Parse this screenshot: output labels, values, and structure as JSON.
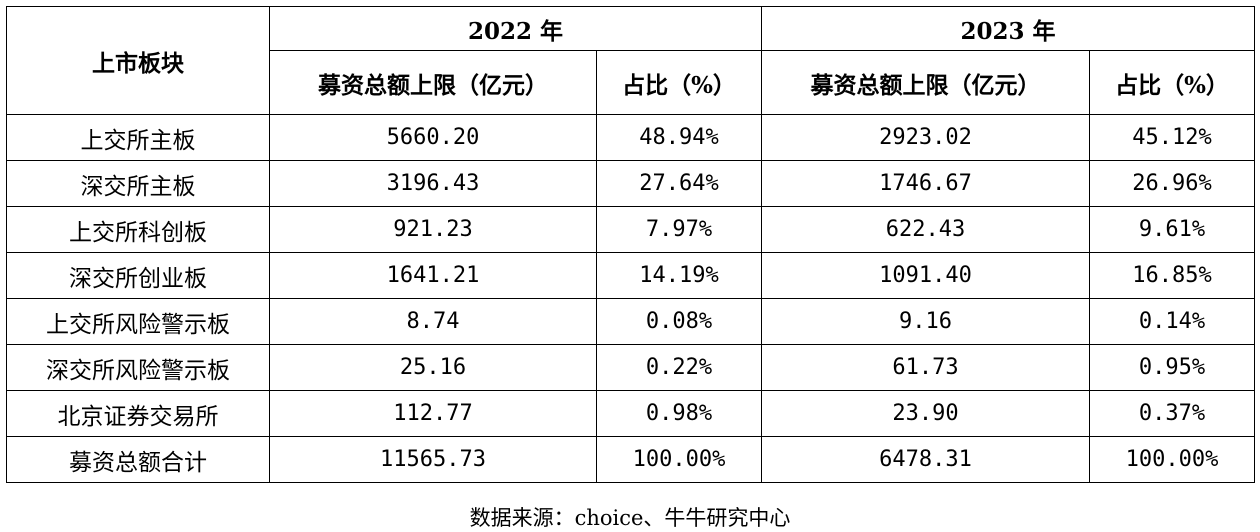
{
  "table": {
    "corner_header": "上市板块",
    "year_headers": [
      "2022 年",
      "2023 年"
    ],
    "sub_headers": [
      "募资总额上限（亿元）",
      "占比（%）",
      "募资总额上限（亿元）",
      "占比（%）"
    ],
    "rows": [
      {
        "board": "上交所主板",
        "amount_2022": "5660.20",
        "share_2022": "48.94%",
        "amount_2023": "2923.02",
        "share_2023": "45.12%"
      },
      {
        "board": "深交所主板",
        "amount_2022": "3196.43",
        "share_2022": "27.64%",
        "amount_2023": "1746.67",
        "share_2023": "26.96%"
      },
      {
        "board": "上交所科创板",
        "amount_2022": "921.23",
        "share_2022": "7.97%",
        "amount_2023": "622.43",
        "share_2023": "9.61%"
      },
      {
        "board": "深交所创业板",
        "amount_2022": "1641.21",
        "share_2022": "14.19%",
        "amount_2023": "1091.40",
        "share_2023": "16.85%"
      },
      {
        "board": "上交所风险警示板",
        "amount_2022": "8.74",
        "share_2022": "0.08%",
        "amount_2023": "9.16",
        "share_2023": "0.14%"
      },
      {
        "board": "深交所风险警示板",
        "amount_2022": "25.16",
        "share_2022": "0.22%",
        "amount_2023": "61.73",
        "share_2023": "0.95%"
      },
      {
        "board": "北京证券交易所",
        "amount_2022": "112.77",
        "share_2022": "0.98%",
        "amount_2023": "23.90",
        "share_2023": "0.37%"
      },
      {
        "board": "募资总额合计",
        "amount_2022": "11565.73",
        "share_2022": "100.00%",
        "amount_2023": "6478.31",
        "share_2023": "100.00%"
      }
    ]
  },
  "source_note": "数据来源：choice、牛牛研究中心"
}
